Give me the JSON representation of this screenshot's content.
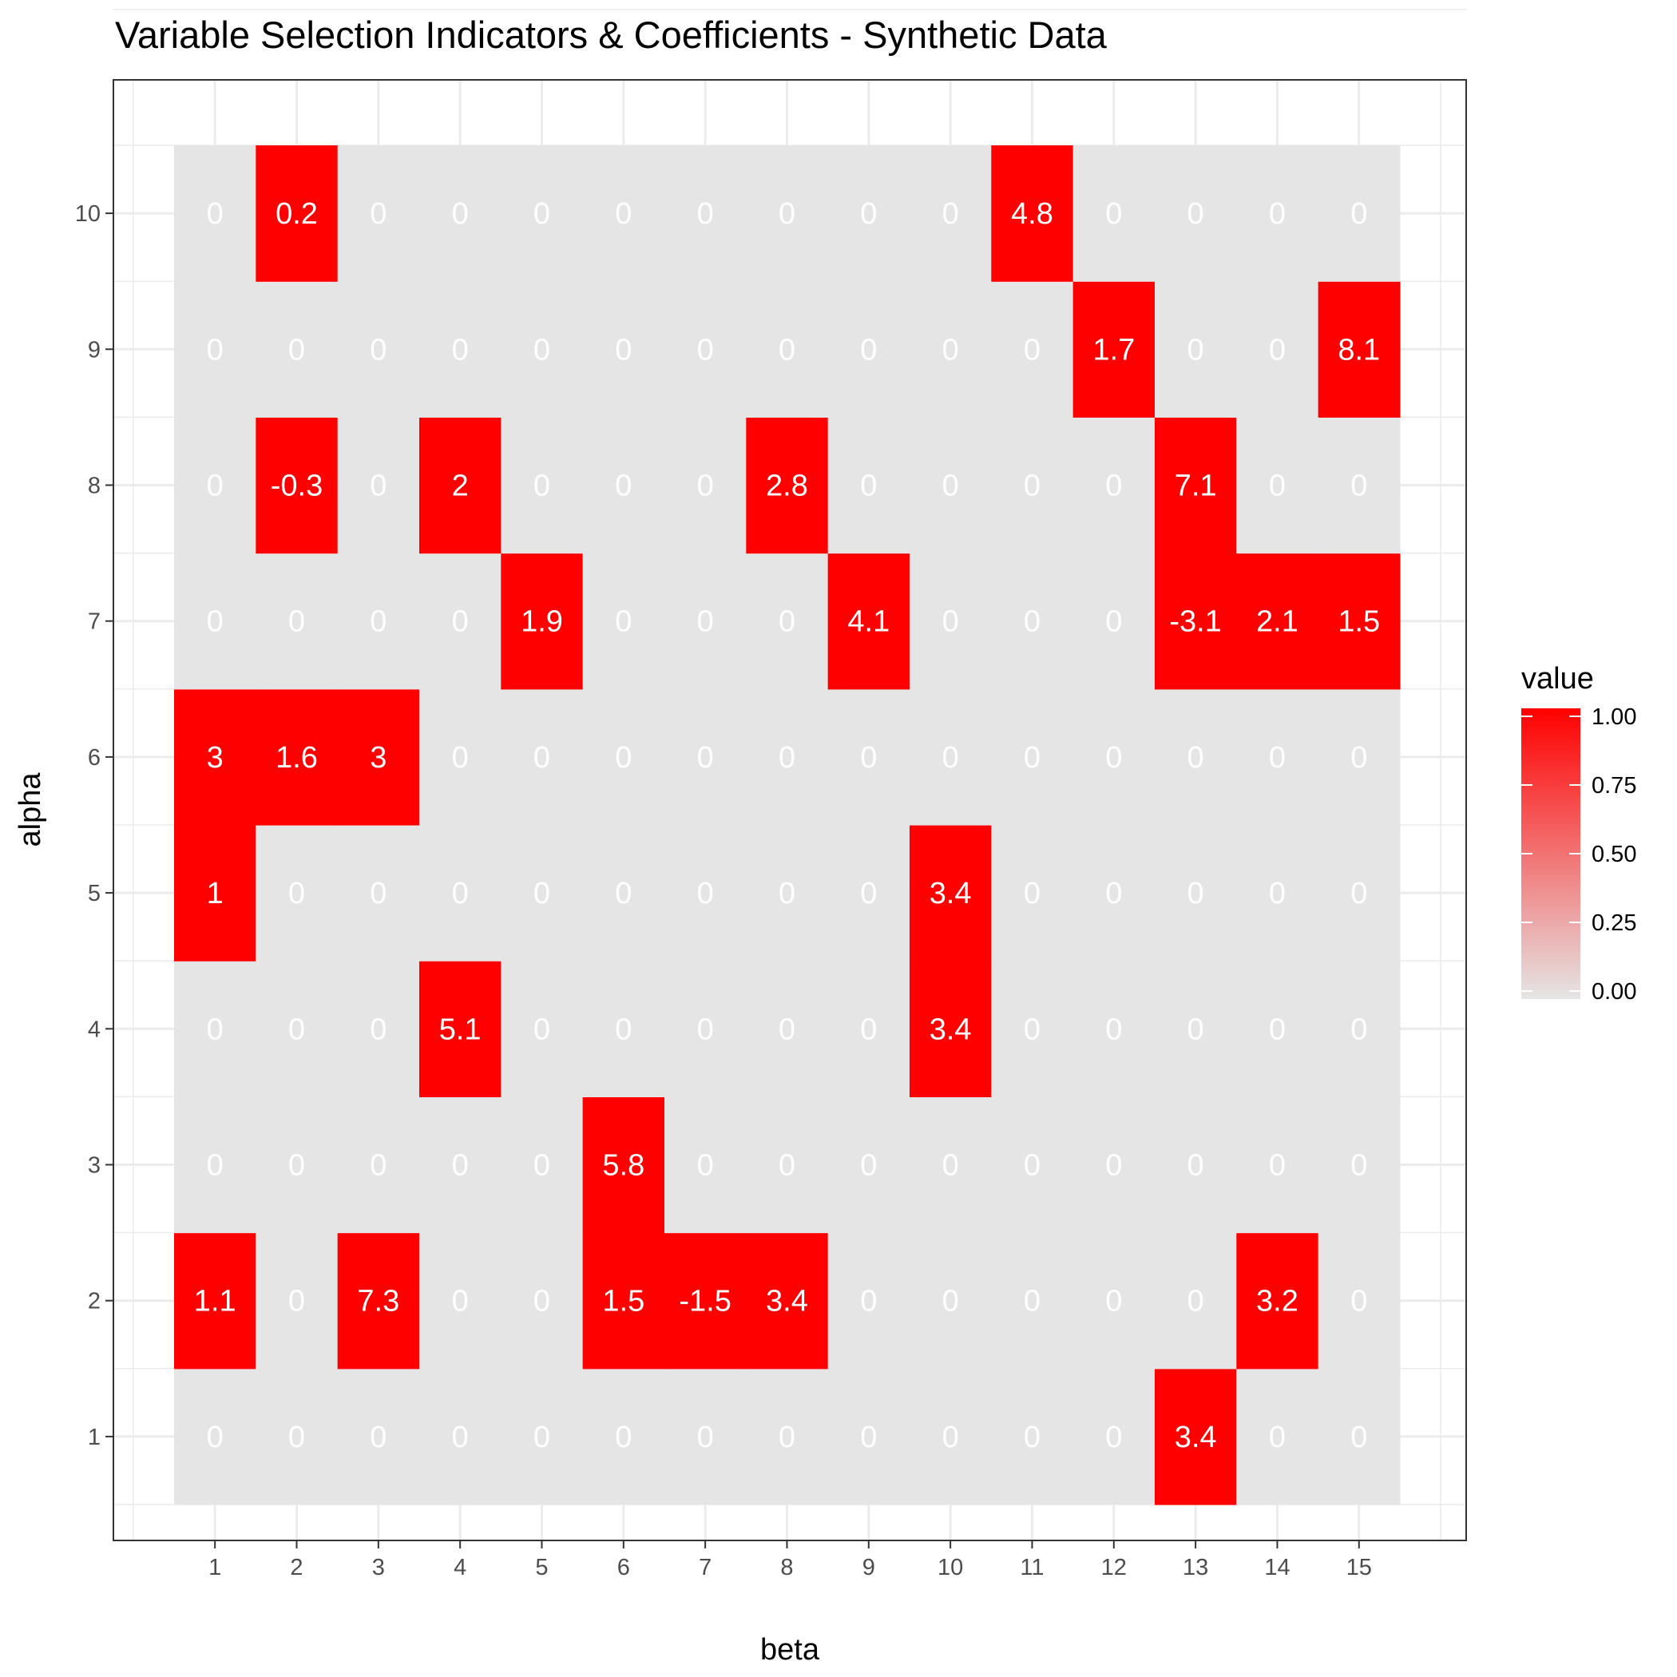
{
  "chart_data": {
    "type": "heatmap",
    "title": "Variable Selection Indicators & Coefficients - Synthetic Data",
    "xlabel": "beta",
    "ylabel": "alpha",
    "x_categories": [
      "1",
      "2",
      "3",
      "4",
      "5",
      "6",
      "7",
      "8",
      "9",
      "10",
      "11",
      "12",
      "13",
      "14",
      "15"
    ],
    "y_categories": [
      "1",
      "2",
      "3",
      "4",
      "5",
      "6",
      "7",
      "8",
      "9",
      "10"
    ],
    "xlim": [
      0.5,
      15.5
    ],
    "ylim": [
      0.5,
      10.5
    ],
    "cells": [
      {
        "beta": 2,
        "alpha": 10,
        "value": 1,
        "label": "0.2"
      },
      {
        "beta": 11,
        "alpha": 10,
        "value": 1,
        "label": "4.8"
      },
      {
        "beta": 12,
        "alpha": 9,
        "value": 1,
        "label": "1.7"
      },
      {
        "beta": 15,
        "alpha": 9,
        "value": 1,
        "label": "8.1"
      },
      {
        "beta": 2,
        "alpha": 8,
        "value": 1,
        "label": "-0.3"
      },
      {
        "beta": 4,
        "alpha": 8,
        "value": 1,
        "label": "2"
      },
      {
        "beta": 8,
        "alpha": 8,
        "value": 1,
        "label": "2.8"
      },
      {
        "beta": 13,
        "alpha": 8,
        "value": 1,
        "label": "7.1"
      },
      {
        "beta": 5,
        "alpha": 7,
        "value": 1,
        "label": "1.9"
      },
      {
        "beta": 9,
        "alpha": 7,
        "value": 1,
        "label": "4.1"
      },
      {
        "beta": 13,
        "alpha": 7,
        "value": 1,
        "label": "-3.1"
      },
      {
        "beta": 14,
        "alpha": 7,
        "value": 1,
        "label": "2.1"
      },
      {
        "beta": 15,
        "alpha": 7,
        "value": 1,
        "label": "1.5"
      },
      {
        "beta": 1,
        "alpha": 6,
        "value": 1,
        "label": "3"
      },
      {
        "beta": 2,
        "alpha": 6,
        "value": 1,
        "label": "1.6"
      },
      {
        "beta": 3,
        "alpha": 6,
        "value": 1,
        "label": "3"
      },
      {
        "beta": 1,
        "alpha": 5,
        "value": 1,
        "label": "1"
      },
      {
        "beta": 10,
        "alpha": 5,
        "value": 1,
        "label": "3.4"
      },
      {
        "beta": 4,
        "alpha": 4,
        "value": 1,
        "label": "5.1"
      },
      {
        "beta": 10,
        "alpha": 4,
        "value": 1,
        "label": "3.4"
      },
      {
        "beta": 6,
        "alpha": 3,
        "value": 1,
        "label": "5.8"
      },
      {
        "beta": 1,
        "alpha": 2,
        "value": 1,
        "label": "1.1"
      },
      {
        "beta": 3,
        "alpha": 2,
        "value": 1,
        "label": "7.3"
      },
      {
        "beta": 6,
        "alpha": 2,
        "value": 1,
        "label": "1.5"
      },
      {
        "beta": 7,
        "alpha": 2,
        "value": 1,
        "label": "-1.5"
      },
      {
        "beta": 8,
        "alpha": 2,
        "value": 1,
        "label": "3.4"
      },
      {
        "beta": 14,
        "alpha": 2,
        "value": 1,
        "label": "3.2"
      },
      {
        "beta": 13,
        "alpha": 1,
        "value": 1,
        "label": "3.4"
      }
    ],
    "default_cell": {
      "value": 0,
      "label": "0"
    },
    "legend": {
      "title": "value",
      "breaks": [
        "1.00",
        "0.75",
        "0.50",
        "0.25",
        "0.00"
      ],
      "range": [
        0,
        1
      ],
      "placement": "right"
    },
    "colors": {
      "low": "#e5e5e5",
      "high": "#ff0000",
      "label_text": "#ffffff"
    },
    "grid": true
  }
}
